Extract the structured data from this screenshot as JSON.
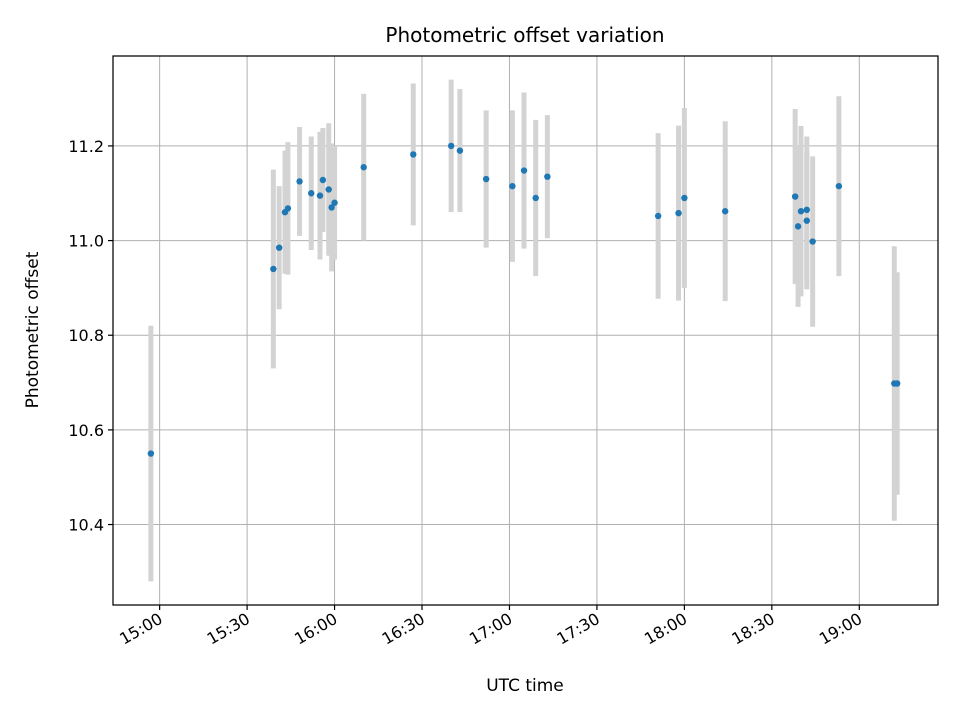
{
  "chart_data": {
    "type": "scatter",
    "title": "Photometric offset variation",
    "xlabel": "UTC time",
    "ylabel": "Photometric offset",
    "x_unit": "UTC time (HH:MM)",
    "xlim": [
      "14:44",
      "19:27"
    ],
    "ylim": [
      10.23,
      11.39
    ],
    "xticks": [
      "15:00",
      "15:30",
      "16:00",
      "16:30",
      "17:00",
      "17:30",
      "18:00",
      "18:30",
      "19:00"
    ],
    "yticks": [
      10.4,
      10.6,
      10.8,
      11.0,
      11.2
    ],
    "ytick_labels": [
      "10.4",
      "10.6",
      "10.8",
      "11.0",
      "11.2"
    ],
    "grid": true,
    "colors": {
      "marker": "#1f77b4",
      "errorbar": "#d3d3d3",
      "grid": "#b0b0b0"
    },
    "points": [
      {
        "t": "14:57",
        "y": 10.55,
        "err": 0.27
      },
      {
        "t": "15:39",
        "y": 10.94,
        "err": 0.21
      },
      {
        "t": "15:41",
        "y": 10.985,
        "err": 0.13
      },
      {
        "t": "15:43",
        "y": 11.06,
        "err": 0.13
      },
      {
        "t": "15:44",
        "y": 11.068,
        "err": 0.14
      },
      {
        "t": "15:48",
        "y": 11.125,
        "err": 0.115
      },
      {
        "t": "15:52",
        "y": 11.1,
        "err": 0.12
      },
      {
        "t": "15:55",
        "y": 11.095,
        "err": 0.135
      },
      {
        "t": "15:56",
        "y": 11.128,
        "err": 0.11
      },
      {
        "t": "15:58",
        "y": 11.108,
        "err": 0.14
      },
      {
        "t": "15:59",
        "y": 11.07,
        "err": 0.135
      },
      {
        "t": "16:00",
        "y": 11.08,
        "err": 0.12
      },
      {
        "t": "16:10",
        "y": 11.155,
        "err": 0.155
      },
      {
        "t": "16:27",
        "y": 11.182,
        "err": 0.15
      },
      {
        "t": "16:40",
        "y": 11.2,
        "err": 0.14
      },
      {
        "t": "16:43",
        "y": 11.19,
        "err": 0.13
      },
      {
        "t": "16:52",
        "y": 11.13,
        "err": 0.145
      },
      {
        "t": "17:01",
        "y": 11.115,
        "err": 0.16
      },
      {
        "t": "17:05",
        "y": 11.148,
        "err": 0.165
      },
      {
        "t": "17:09",
        "y": 11.09,
        "err": 0.165
      },
      {
        "t": "17:13",
        "y": 11.135,
        "err": 0.13
      },
      {
        "t": "17:51",
        "y": 11.052,
        "err": 0.175
      },
      {
        "t": "17:58",
        "y": 11.058,
        "err": 0.185
      },
      {
        "t": "18:00",
        "y": 11.09,
        "err": 0.19
      },
      {
        "t": "18:14",
        "y": 11.062,
        "err": 0.19
      },
      {
        "t": "18:38",
        "y": 11.093,
        "err": 0.185
      },
      {
        "t": "18:39",
        "y": 11.03,
        "err": 0.17
      },
      {
        "t": "18:40",
        "y": 11.062,
        "err": 0.18
      },
      {
        "t": "18:42",
        "y": 11.042,
        "err": 0.145
      },
      {
        "t": "18:42",
        "y": 11.065,
        "err": 0.155
      },
      {
        "t": "18:44",
        "y": 10.998,
        "err": 0.18
      },
      {
        "t": "18:53",
        "y": 11.115,
        "err": 0.19
      },
      {
        "t": "19:12",
        "y": 10.698,
        "err": 0.29
      },
      {
        "t": "19:13",
        "y": 10.698,
        "err": 0.235
      }
    ]
  }
}
